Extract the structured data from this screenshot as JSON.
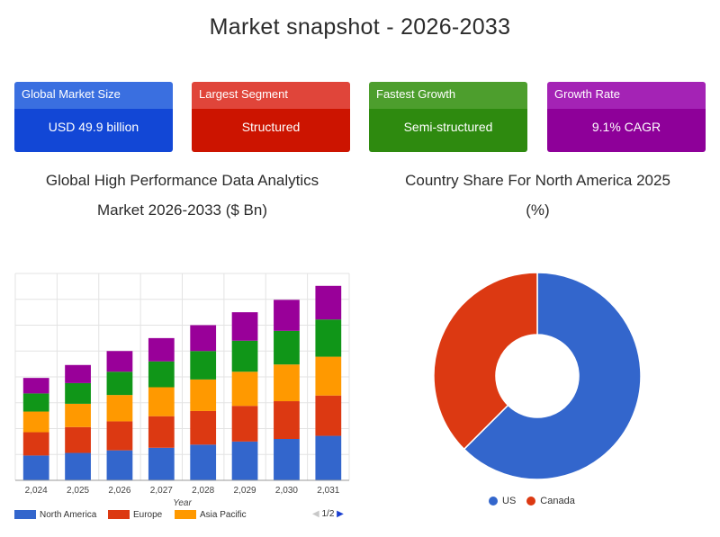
{
  "page": {
    "title": "Market snapshot - 2026-2033"
  },
  "cards": [
    {
      "label": "Global Market Size",
      "value": "USD 49.9 billion",
      "head_color": "#3a6fe0",
      "body_color": "#1247d6"
    },
    {
      "label": "Largest Segment",
      "value": "Structured",
      "head_color": "#e0453a",
      "body_color": "#cc1400"
    },
    {
      "label": "Fastest Growth",
      "value": "Semi-structured",
      "head_color": "#4d9e2d",
      "body_color": "#2e8a0f"
    },
    {
      "label": "Growth Rate",
      "value": "9.1% CAGR",
      "head_color": "#a423b5",
      "body_color": "#8e0099"
    }
  ],
  "bar_chart": {
    "title_line1": "Global High Performance Data Analytics",
    "title_line2": "Market 2026-2033 ($ Bn)",
    "legend_page": "1/2"
  },
  "pie_chart": {
    "title_line1": "Country Share For North America 2025",
    "title_line2": "(%)"
  },
  "chart_data": [
    {
      "type": "bar",
      "stacked": true,
      "title": "Global High Performance Data Analytics Market 2026-2033 ($ Bn)",
      "xlabel": "Year",
      "ylabel": "",
      "categories": [
        "2,024",
        "2,025",
        "2,026",
        "2,027",
        "2,028",
        "2,029",
        "2,030",
        "2,031"
      ],
      "ylim": [
        0,
        40
      ],
      "grid": true,
      "legend_position": "bottom",
      "series": [
        {
          "name": "North America",
          "color": "#3366cc",
          "values": [
            4.8,
            5.3,
            5.8,
            6.3,
            6.9,
            7.5,
            8.0,
            8.6
          ]
        },
        {
          "name": "Europe",
          "color": "#dc3912",
          "values": [
            4.5,
            5.0,
            5.6,
            6.1,
            6.5,
            6.9,
            7.3,
            7.8
          ]
        },
        {
          "name": "Asia Pacific",
          "color": "#ff9900",
          "values": [
            4.0,
            4.5,
            5.1,
            5.6,
            6.1,
            6.6,
            7.1,
            7.5
          ]
        },
        {
          "name": "",
          "color": "#109618",
          "values": [
            3.5,
            4.0,
            4.5,
            5.0,
            5.5,
            6.0,
            6.5,
            7.2
          ]
        },
        {
          "name": "",
          "color": "#990099",
          "values": [
            3.0,
            3.5,
            4.0,
            4.5,
            5.0,
            5.5,
            6.0,
            6.5
          ]
        }
      ]
    },
    {
      "type": "pie",
      "donut": true,
      "title": "Country Share For North America 2025 (%)",
      "legend_position": "bottom",
      "slices": [
        {
          "label": "US",
          "value": 62.5,
          "color": "#3366cc"
        },
        {
          "label": "Canada",
          "value": 37.5,
          "color": "#dc3912"
        }
      ]
    }
  ]
}
